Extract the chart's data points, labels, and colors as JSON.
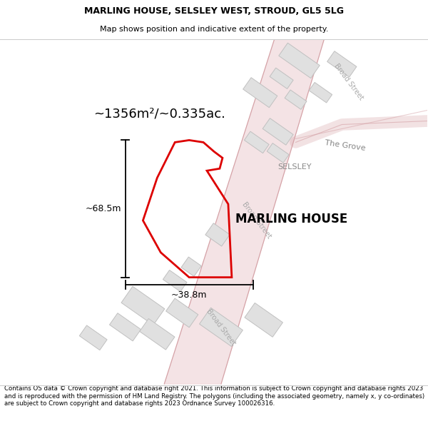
{
  "title_line1": "MARLING HOUSE, SELSLEY WEST, STROUD, GL5 5LG",
  "title_line2": "Map shows position and indicative extent of the property.",
  "property_label": "MARLING HOUSE",
  "area_label": "~1356m²/~0.335ac.",
  "dim_height": "~68.5m",
  "dim_width": "~38.8m",
  "footer_text": "Contains OS data © Crown copyright and database right 2021. This information is subject to Crown copyright and database rights 2023 and is reproduced with the permission of HM Land Registry. The polygons (including the associated geometry, namely x, y co-ordinates) are subject to Crown copyright and database rights 2023 Ordnance Survey 100026316.",
  "background_color": "#f8f8f8",
  "road_fill_color": "#f0d8da",
  "road_line_color": "#d4a0a5",
  "building_color": "#e0e0e0",
  "building_edge_color": "#c0c0c0",
  "plot_boundary_color": "#dd0000",
  "dim_line_color": "#000000",
  "title_color": "#000000",
  "label_gray": "#aaaaaa",
  "label_darkgray": "#888888"
}
